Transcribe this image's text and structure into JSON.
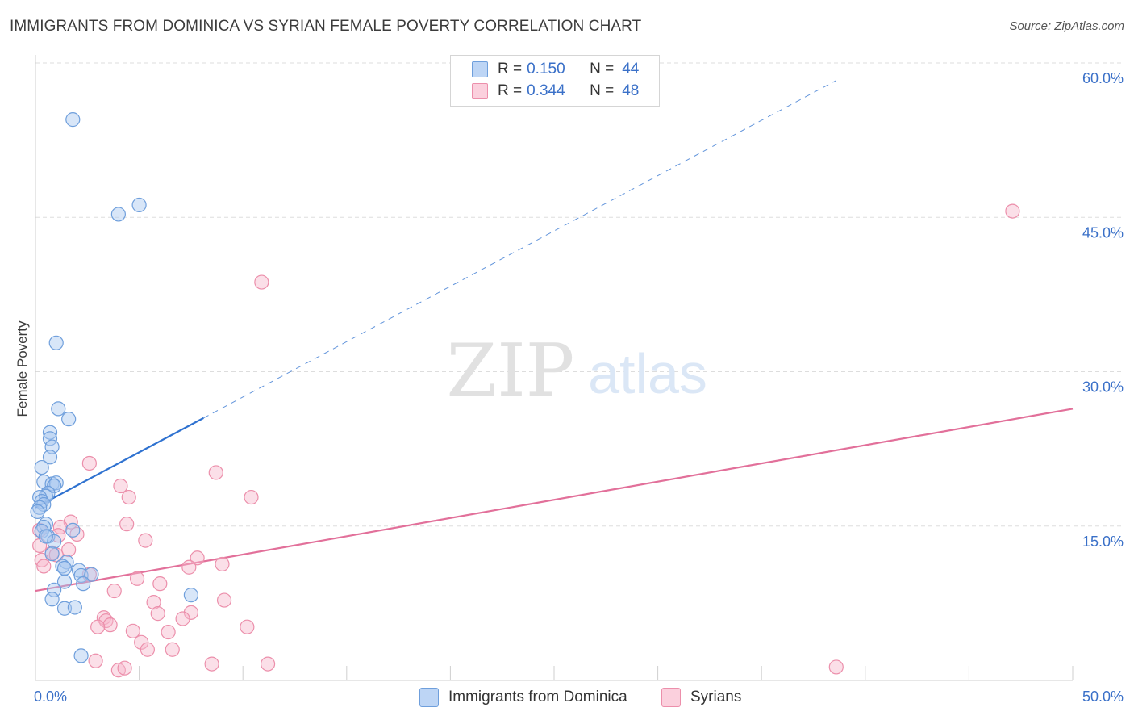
{
  "title": "IMMIGRANTS FROM DOMINICA VS SYRIAN FEMALE POVERTY CORRELATION CHART",
  "source": "Source: ZipAtlas.com",
  "watermark": {
    "zip": "ZIP",
    "atlas": "atlas"
  },
  "legend": {
    "r_label": "R =",
    "n_label": "N =",
    "series": [
      {
        "name": "Immigrants from Dominica",
        "r": "0.150",
        "n": "44"
      },
      {
        "name": "Syrians",
        "r": "0.344",
        "n": "48"
      }
    ]
  },
  "colors": {
    "blue_fill": "#a8c8f0",
    "blue_stroke": "#6f9fdc",
    "blue_line": "#2f72d0",
    "pink_fill": "#f7b8cb",
    "pink_stroke": "#ec8fab",
    "pink_line": "#e2709a",
    "tick_label": "#3a70c8",
    "grid": "#dddddd"
  },
  "chart_data": {
    "type": "scatter",
    "title": "IMMIGRANTS FROM DOMINICA VS SYRIAN FEMALE POVERTY CORRELATION CHART",
    "xlabel": "",
    "ylabel": "Female Poverty",
    "xlim": [
      0,
      50
    ],
    "ylim": [
      0,
      60
    ],
    "x_tick_labels": [
      "0.0%",
      "50.0%"
    ],
    "x_ticks_minor": [
      0,
      5,
      10,
      15,
      20,
      25,
      30,
      35,
      40,
      45,
      50
    ],
    "y_ticks": [
      15,
      30,
      45,
      60
    ],
    "y_tick_labels": [
      "15.0%",
      "30.0%",
      "45.0%",
      "60.0%"
    ],
    "series": [
      {
        "name": "Immigrants from Dominica",
        "color": "blue",
        "trend": {
          "x0": 0,
          "y0": 16.8,
          "x1_solid": 8.1,
          "y1_solid": 25.5,
          "x1_dashed": 38.6,
          "y1_dashed": 58.3
        },
        "points": [
          [
            1.8,
            54.5
          ],
          [
            4.0,
            45.3
          ],
          [
            5.0,
            46.2
          ],
          [
            1.0,
            32.8
          ],
          [
            1.1,
            26.4
          ],
          [
            1.6,
            25.4
          ],
          [
            0.7,
            24.1
          ],
          [
            0.7,
            23.5
          ],
          [
            0.8,
            22.7
          ],
          [
            0.7,
            21.7
          ],
          [
            0.3,
            20.7
          ],
          [
            0.4,
            19.3
          ],
          [
            0.8,
            19.1
          ],
          [
            1.0,
            19.2
          ],
          [
            0.9,
            18.9
          ],
          [
            0.6,
            18.2
          ],
          [
            0.5,
            17.9
          ],
          [
            0.2,
            17.8
          ],
          [
            0.3,
            17.4
          ],
          [
            0.4,
            17.1
          ],
          [
            0.2,
            16.8
          ],
          [
            0.1,
            16.4
          ],
          [
            0.5,
            15.2
          ],
          [
            0.4,
            14.9
          ],
          [
            0.3,
            14.5
          ],
          [
            1.8,
            14.6
          ],
          [
            0.6,
            14.0
          ],
          [
            0.9,
            13.5
          ],
          [
            0.8,
            12.3
          ],
          [
            1.5,
            11.5
          ],
          [
            1.3,
            11.1
          ],
          [
            1.4,
            10.9
          ],
          [
            2.1,
            10.7
          ],
          [
            2.2,
            10.2
          ],
          [
            2.7,
            10.3
          ],
          [
            1.4,
            9.6
          ],
          [
            2.3,
            9.4
          ],
          [
            0.9,
            8.8
          ],
          [
            7.5,
            8.3
          ],
          [
            0.8,
            7.9
          ],
          [
            1.4,
            7.0
          ],
          [
            1.9,
            7.1
          ],
          [
            2.2,
            2.4
          ],
          [
            0.5,
            14.0
          ]
        ]
      },
      {
        "name": "Syrians",
        "color": "pink",
        "trend": {
          "x0": 0,
          "y0": 8.7,
          "x1": 50,
          "y1": 26.4
        },
        "points": [
          [
            47.1,
            45.6
          ],
          [
            10.9,
            38.7
          ],
          [
            2.6,
            21.1
          ],
          [
            8.7,
            20.2
          ],
          [
            4.1,
            18.9
          ],
          [
            10.4,
            17.8
          ],
          [
            4.5,
            17.8
          ],
          [
            1.7,
            15.4
          ],
          [
            4.4,
            15.2
          ],
          [
            1.2,
            14.9
          ],
          [
            0.2,
            14.6
          ],
          [
            2.0,
            14.2
          ],
          [
            1.1,
            14.1
          ],
          [
            5.3,
            13.6
          ],
          [
            0.2,
            13.1
          ],
          [
            1.6,
            12.7
          ],
          [
            0.8,
            12.4
          ],
          [
            1.0,
            12.2
          ],
          [
            7.8,
            11.9
          ],
          [
            0.3,
            11.7
          ],
          [
            9.0,
            11.3
          ],
          [
            7.4,
            11.0
          ],
          [
            0.4,
            11.1
          ],
          [
            2.6,
            10.3
          ],
          [
            4.9,
            9.9
          ],
          [
            6.0,
            9.4
          ],
          [
            3.8,
            8.7
          ],
          [
            9.1,
            7.8
          ],
          [
            5.7,
            7.6
          ],
          [
            7.5,
            6.6
          ],
          [
            5.9,
            6.5
          ],
          [
            3.3,
            6.1
          ],
          [
            3.4,
            5.8
          ],
          [
            7.1,
            6.0
          ],
          [
            3.6,
            5.4
          ],
          [
            3.0,
            5.2
          ],
          [
            10.2,
            5.2
          ],
          [
            4.7,
            4.8
          ],
          [
            6.4,
            4.7
          ],
          [
            5.1,
            3.7
          ],
          [
            5.4,
            3.0
          ],
          [
            6.6,
            3.0
          ],
          [
            2.9,
            1.9
          ],
          [
            8.5,
            1.6
          ],
          [
            11.2,
            1.6
          ],
          [
            38.6,
            1.3
          ],
          [
            4.0,
            1.0
          ],
          [
            4.3,
            1.2
          ]
        ]
      }
    ]
  }
}
